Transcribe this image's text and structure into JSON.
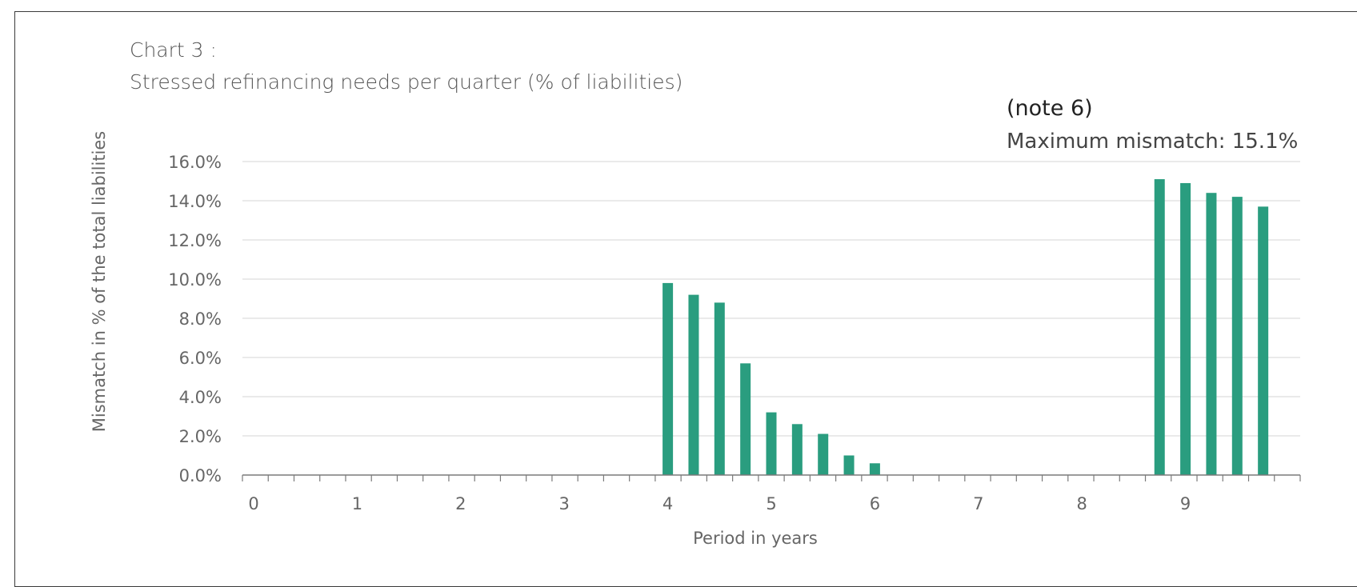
{
  "chart_data": {
    "type": "bar",
    "title_line1": "Chart 3 :",
    "title_line2": "Stressed refinancing needs per quarter  (% of liabilities)",
    "annotation_note": "(note 6)",
    "annotation_max": "Maximum mismatch: 15.1%",
    "xlabel": "Period in years",
    "ylabel": "Mismatch in % of the total liabilities",
    "ylim": [
      0,
      16
    ],
    "yticks": [
      "0.0%",
      "2.0%",
      "4.0%",
      "6.0%",
      "8.0%",
      "10.0%",
      "12.0%",
      "14.0%",
      "16.0%"
    ],
    "xticks": [
      "0",
      "1",
      "2",
      "3",
      "4",
      "5",
      "6",
      "7",
      "8",
      "9"
    ],
    "x_unit": "quarters from 0 to 10 years",
    "bars": [
      {
        "x": 4.0,
        "value": 9.8
      },
      {
        "x": 4.25,
        "value": 9.2
      },
      {
        "x": 4.5,
        "value": 8.8
      },
      {
        "x": 4.75,
        "value": 5.7
      },
      {
        "x": 5.0,
        "value": 3.2
      },
      {
        "x": 5.25,
        "value": 2.6
      },
      {
        "x": 5.5,
        "value": 2.1
      },
      {
        "x": 5.75,
        "value": 1.0
      },
      {
        "x": 6.0,
        "value": 0.6
      },
      {
        "x": 8.75,
        "value": 15.1
      },
      {
        "x": 9.0,
        "value": 14.9
      },
      {
        "x": 9.25,
        "value": 14.4
      },
      {
        "x": 9.5,
        "value": 14.2
      },
      {
        "x": 9.75,
        "value": 13.7
      }
    ],
    "bar_color": "#2a9d7f",
    "grid": true,
    "legend": "none"
  }
}
